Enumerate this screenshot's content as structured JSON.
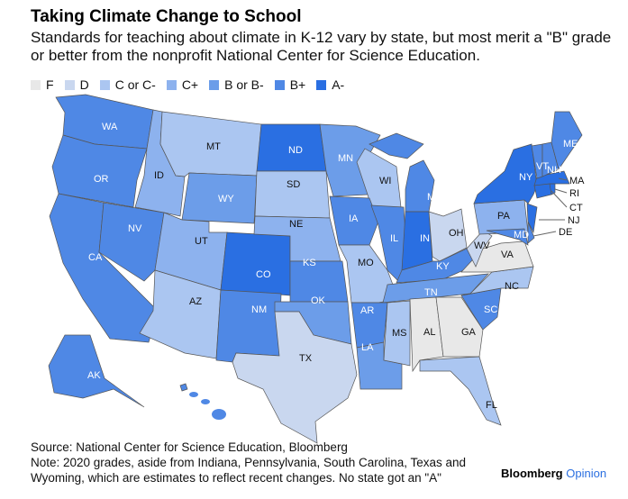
{
  "title": "Taking Climate Change to School",
  "subtitle": "Standards for teaching about climate in K-12 vary by state, but most merit a \"B\" grade or better from the nonprofit National Center for Science Education.",
  "legend": [
    {
      "label": "F",
      "color": "#e8e8e8"
    },
    {
      "label": "D",
      "color": "#c9d7ef"
    },
    {
      "label": "C or C-",
      "color": "#abc6f1"
    },
    {
      "label": "C+",
      "color": "#8db2ee"
    },
    {
      "label": "B or B-",
      "color": "#6c9de9"
    },
    {
      "label": "B+",
      "color": "#4f88e5"
    },
    {
      "label": "A-",
      "color": "#2a6fe2"
    }
  ],
  "states": {
    "WA": "B+",
    "OR": "B+",
    "CA": "B+",
    "NV": "B+",
    "ID": "C+",
    "MT": "C or C-",
    "WY": "B or B-",
    "UT": "C+",
    "CO": "A-",
    "AZ": "C or C-",
    "NM": "B+",
    "ND": "A-",
    "SD": "C or C-",
    "NE": "C+",
    "KS": "B+",
    "OK": "B or B-",
    "TX": "D",
    "MN": "B or B-",
    "IA": "B+",
    "MO": "C or C-",
    "AR": "B+",
    "LA": "B or B-",
    "WI": "C or C-",
    "IL": "B+",
    "IN": "A-",
    "MI": "B+",
    "OH": "D",
    "KY": "B+",
    "TN": "B or B-",
    "MS": "C or C-",
    "AL": "F",
    "GA": "F",
    "FL": "C or C-",
    "SC": "B+",
    "NC": "C or C-",
    "VA": "F",
    "WV": "D",
    "PA": "C+",
    "NY": "A-",
    "MD": "B+",
    "DE": "B+",
    "NJ": "A-",
    "CT": "A-",
    "RI": "A-",
    "MA": "A-",
    "VT": "B+",
    "NH": "B+",
    "ME": "B+",
    "AK": "B+",
    "HI": "B+"
  },
  "footer": {
    "source": "Source: National Center for Science Education, Bloomberg",
    "note": "Note: 2020 grades, aside from Indiana, Pennsylvania, South Carolina, Texas and Wyoming, which are estimates to reflect recent changes. No state got an \"A\""
  },
  "brand": {
    "name": "Bloomberg",
    "suffix": "Opinion"
  }
}
